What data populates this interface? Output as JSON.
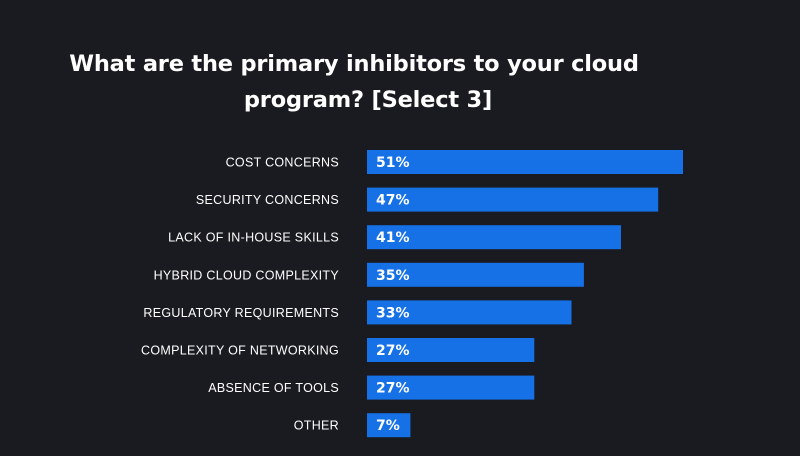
{
  "title": {
    "line1": "What are the primary inhibitors to your cloud",
    "line2": "program? [Select 3]"
  },
  "colors": {
    "background": "#1a1b20",
    "bar": "#1670e6",
    "text": "#ffffff"
  },
  "chart_data": {
    "type": "bar",
    "orientation": "horizontal",
    "title": "What are the primary inhibitors to your cloud program? [Select 3]",
    "xlabel": "",
    "ylabel": "",
    "xlim": [
      0,
      51
    ],
    "categories": [
      "COST CONCERNS",
      "SECURITY CONCERNS",
      "LACK OF IN-HOUSE SKILLS",
      "HYBRID CLOUD COMPLEXITY",
      "REGULATORY REQUIREMENTS",
      "COMPLEXITY OF NETWORKING",
      "ABSENCE OF TOOLS",
      "OTHER"
    ],
    "values": [
      51,
      47,
      41,
      35,
      33,
      27,
      27,
      7
    ],
    "value_labels": [
      "51%",
      "47%",
      "41%",
      "35%",
      "33%",
      "27%",
      "27%",
      "7%"
    ]
  }
}
